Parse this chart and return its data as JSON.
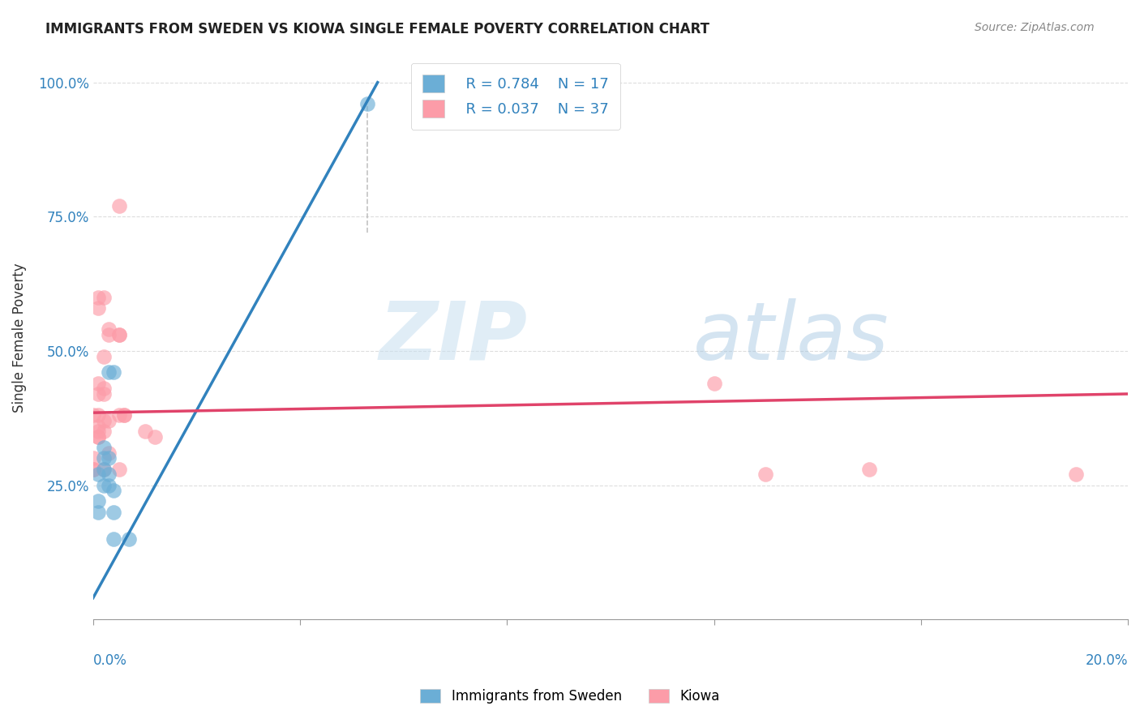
{
  "title": "IMMIGRANTS FROM SWEDEN VS KIOWA SINGLE FEMALE POVERTY CORRELATION CHART",
  "source": "Source: ZipAtlas.com",
  "ylabel": "Single Female Poverty",
  "x_range": [
    0.0,
    0.2
  ],
  "y_range": [
    0.0,
    1.05
  ],
  "legend_blue_r": "R = 0.784",
  "legend_blue_n": "N = 17",
  "legend_pink_r": "R = 0.037",
  "legend_pink_n": "N = 37",
  "blue_dots": [
    [
      0.001,
      0.22
    ],
    [
      0.001,
      0.2
    ],
    [
      0.001,
      0.27
    ],
    [
      0.002,
      0.25
    ],
    [
      0.002,
      0.28
    ],
    [
      0.002,
      0.3
    ],
    [
      0.002,
      0.32
    ],
    [
      0.003,
      0.27
    ],
    [
      0.003,
      0.46
    ],
    [
      0.003,
      0.25
    ],
    [
      0.003,
      0.3
    ],
    [
      0.004,
      0.46
    ],
    [
      0.004,
      0.24
    ],
    [
      0.004,
      0.2
    ],
    [
      0.004,
      0.15
    ],
    [
      0.007,
      0.15
    ],
    [
      0.053,
      0.96
    ]
  ],
  "pink_dots": [
    [
      0.0,
      0.38
    ],
    [
      0.0,
      0.3
    ],
    [
      0.0,
      0.28
    ],
    [
      0.0,
      0.28
    ],
    [
      0.001,
      0.58
    ],
    [
      0.001,
      0.6
    ],
    [
      0.001,
      0.38
    ],
    [
      0.001,
      0.36
    ],
    [
      0.001,
      0.35
    ],
    [
      0.001,
      0.34
    ],
    [
      0.001,
      0.34
    ],
    [
      0.001,
      0.42
    ],
    [
      0.001,
      0.44
    ],
    [
      0.002,
      0.49
    ],
    [
      0.002,
      0.43
    ],
    [
      0.002,
      0.42
    ],
    [
      0.002,
      0.37
    ],
    [
      0.002,
      0.35
    ],
    [
      0.002,
      0.28
    ],
    [
      0.002,
      0.6
    ],
    [
      0.003,
      0.54
    ],
    [
      0.003,
      0.53
    ],
    [
      0.003,
      0.37
    ],
    [
      0.003,
      0.31
    ],
    [
      0.005,
      0.77
    ],
    [
      0.005,
      0.53
    ],
    [
      0.005,
      0.53
    ],
    [
      0.005,
      0.38
    ],
    [
      0.005,
      0.28
    ],
    [
      0.006,
      0.38
    ],
    [
      0.006,
      0.38
    ],
    [
      0.01,
      0.35
    ],
    [
      0.012,
      0.34
    ],
    [
      0.12,
      0.44
    ],
    [
      0.13,
      0.27
    ],
    [
      0.15,
      0.28
    ],
    [
      0.19,
      0.27
    ]
  ],
  "blue_line_x": [
    0.0,
    0.055
  ],
  "blue_line_y": [
    0.04,
    1.0
  ],
  "pink_line_x": [
    0.0,
    0.2
  ],
  "pink_line_y": [
    0.385,
    0.42
  ],
  "blue_color": "#6baed6",
  "blue_line_color": "#3182bd",
  "pink_color": "#fc9ca8",
  "pink_line_color": "#e0436a",
  "watermark_zip": "ZIP",
  "watermark_atlas": "atlas",
  "background_color": "#ffffff",
  "grid_color": "#dddddd"
}
